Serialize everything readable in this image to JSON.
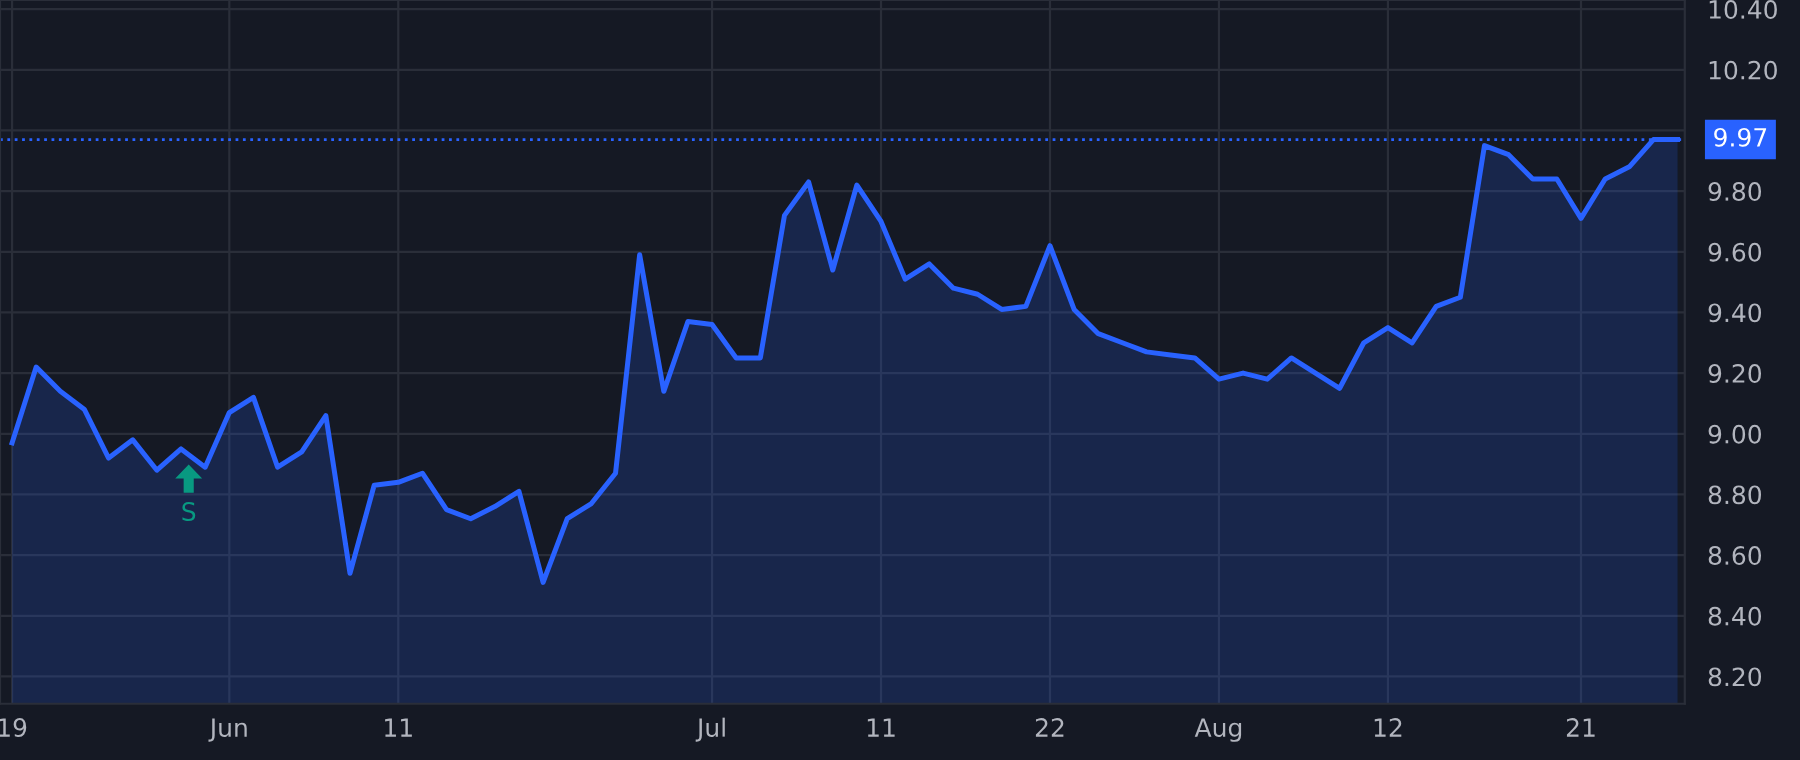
{
  "chart_data": {
    "type": "area",
    "categories": [
      "19",
      null,
      null,
      null,
      null,
      null,
      null,
      null,
      null,
      "Jun",
      null,
      null,
      null,
      null,
      null,
      null,
      "11",
      null,
      null,
      null,
      null,
      null,
      null,
      null,
      null,
      null,
      null,
      null,
      null,
      "Jul",
      null,
      null,
      null,
      null,
      null,
      null,
      "11",
      null,
      null,
      null,
      null,
      null,
      null,
      "22",
      null,
      null,
      null,
      null,
      null,
      null,
      "Aug",
      null,
      null,
      null,
      null,
      null,
      null,
      "12",
      null,
      null,
      null,
      null,
      null,
      null,
      null,
      "21",
      null,
      null,
      null,
      null
    ],
    "series": [
      {
        "color": "#2962ff",
        "values": [
          8.97,
          9.22,
          9.14,
          9.08,
          8.92,
          8.98,
          8.88,
          8.95,
          8.89,
          9.07,
          9.12,
          8.89,
          8.94,
          9.06,
          8.54,
          8.83,
          8.84,
          8.87,
          8.75,
          8.72,
          8.76,
          8.81,
          8.51,
          8.72,
          8.77,
          8.87,
          9.59,
          9.14,
          9.37,
          9.36,
          9.25,
          9.25,
          9.72,
          9.83,
          9.54,
          9.82,
          9.7,
          9.51,
          9.56,
          9.48,
          9.46,
          9.41,
          9.42,
          9.62,
          9.41,
          9.33,
          9.3,
          9.27,
          9.26,
          9.25,
          9.18,
          9.2,
          9.18,
          9.25,
          9.2,
          9.15,
          9.3,
          9.35,
          9.3,
          9.42,
          9.45,
          9.95,
          9.92,
          9.84,
          9.84,
          9.71,
          9.84,
          9.88,
          9.97,
          9.97
        ]
      }
    ],
    "ylim": [
      8.11,
      10.43
    ],
    "yticks": [
      {
        "value": 8.2,
        "label": "8.20"
      },
      {
        "value": 8.4,
        "label": "8.40"
      },
      {
        "value": 8.6,
        "label": "8.60"
      },
      {
        "value": 8.8,
        "label": "8.80"
      },
      {
        "value": 9.0,
        "label": "9.00"
      },
      {
        "value": 9.2,
        "label": "9.20"
      },
      {
        "value": 9.4,
        "label": "9.40"
      },
      {
        "value": 9.6,
        "label": "9.60"
      },
      {
        "value": 9.8,
        "label": "9.80"
      },
      {
        "value": 10.0,
        "label": null
      },
      {
        "value": 10.2,
        "label": "10.20"
      },
      {
        "value": 10.4,
        "label": "10.40"
      }
    ],
    "ref_lines": [
      {
        "axis": "y",
        "value": 9.97,
        "label": "9.97",
        "color": "#2962ff",
        "line_style": "dotted"
      }
    ],
    "annotations": [
      "S"
    ],
    "grid": true,
    "legend": false
  }
}
